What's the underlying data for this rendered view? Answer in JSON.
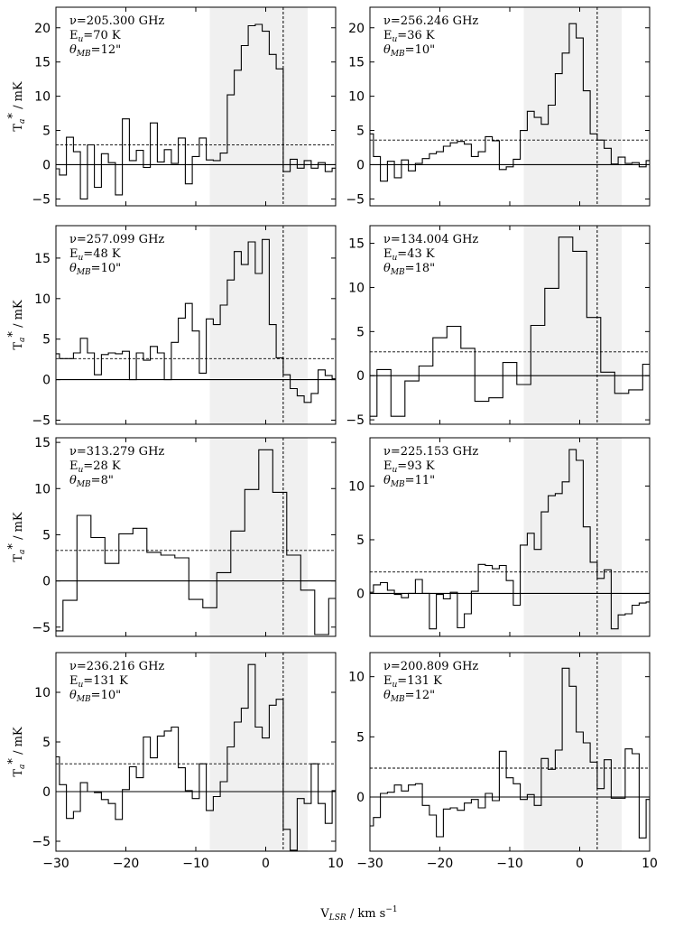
{
  "figure": {
    "xlabel": "V",
    "xlabel_sub": "LSR",
    "xlabel_units": "/ km s",
    "xlabel_exp": "−1",
    "ylabel": "T",
    "ylabel_sub": "a",
    "ylabel_sup": "*",
    "ylabel_units": "/ mK"
  },
  "colors": {
    "line": "#000000",
    "shade": "#f0f0f0"
  },
  "chart_data": [
    {
      "type": "line",
      "step": true,
      "freq": "ν=205.300 GHz",
      "eu": "E",
      "eu_sub": "u",
      "eu_val": "=70 K",
      "beam": "θ",
      "beam_sub": "MB",
      "beam_val": "=12\"",
      "ylim": [
        -6,
        23
      ],
      "yticks": [
        -5,
        0,
        5,
        10,
        15,
        20
      ],
      "xlim": [
        -30,
        10
      ],
      "xticks": [
        -30,
        -20,
        -10,
        0,
        10
      ],
      "shade": [
        -8,
        6
      ],
      "vline": 2.5,
      "hline": 2.9,
      "x": [
        -30,
        -29,
        -28,
        -27,
        -26,
        -25,
        -24,
        -23,
        -22,
        -21,
        -20,
        -19,
        -18,
        -17,
        -16,
        -15,
        -14,
        -13,
        -12,
        -11,
        -10,
        -9,
        -8,
        -7,
        -6,
        -5,
        -4,
        -3,
        -2,
        -1,
        0,
        1,
        2,
        3,
        4,
        5,
        6,
        7,
        8,
        9,
        10
      ],
      "values": [
        -0.6,
        -1.5,
        4.0,
        1.9,
        -5.0,
        2.9,
        -3.3,
        1.6,
        0.3,
        -4.4,
        6.7,
        0.6,
        2.1,
        -0.4,
        6.1,
        0.4,
        2.2,
        0.2,
        3.9,
        -2.8,
        1.2,
        3.9,
        0.7,
        0.6,
        1.7,
        10.2,
        13.8,
        17.4,
        20.3,
        20.5,
        19.5,
        16.1,
        14.0,
        -1.0,
        0.8,
        -0.5,
        0.6,
        -0.5,
        0.3,
        -1.0,
        -0.5
      ]
    },
    {
      "type": "line",
      "step": true,
      "freq": "ν=256.246 GHz",
      "eu": "E",
      "eu_sub": "u",
      "eu_val": "=36 K",
      "beam": "θ",
      "beam_sub": "MB",
      "beam_val": "=10\"",
      "ylim": [
        -6,
        23
      ],
      "yticks": [
        -5,
        0,
        5,
        10,
        15,
        20
      ],
      "xlim": [
        -30,
        10
      ],
      "xticks": [
        -30,
        -20,
        -10,
        0,
        10
      ],
      "shade": [
        -8,
        6
      ],
      "vline": 2.5,
      "hline": 3.6,
      "x": [
        -30,
        -29,
        -28,
        -27,
        -26,
        -25,
        -24,
        -23,
        -22,
        -21,
        -20,
        -19,
        -18,
        -17,
        -16,
        -15,
        -14,
        -13,
        -12,
        -11,
        -10,
        -9,
        -8,
        -7,
        -6,
        -5,
        -4,
        -3,
        -2,
        -1,
        0,
        1,
        2,
        3,
        4,
        5,
        6,
        7,
        8,
        9,
        10
      ],
      "values": [
        4.5,
        1.2,
        -2.4,
        0.5,
        -1.9,
        0.7,
        -0.9,
        0.2,
        0.9,
        1.6,
        1.9,
        2.7,
        3.2,
        3.4,
        3.0,
        1.2,
        1.9,
        4.1,
        3.5,
        -0.7,
        -0.3,
        0.8,
        5.0,
        7.8,
        6.9,
        5.9,
        8.7,
        13.3,
        16.3,
        20.6,
        18.5,
        10.8,
        4.5,
        3.6,
        2.4,
        0.1,
        1.1,
        0.2,
        0.3,
        -0.3,
        0.6
      ]
    },
    {
      "type": "line",
      "step": true,
      "freq": "ν=257.099 GHz",
      "eu": "E",
      "eu_sub": "u",
      "eu_val": "=48 K",
      "beam": "θ",
      "beam_sub": "MB",
      "beam_val": "=10\"",
      "ylim": [
        -5.5,
        19
      ],
      "yticks": [
        -5,
        0,
        5,
        10,
        15
      ],
      "xlim": [
        -30,
        10
      ],
      "xticks": [
        -30,
        -20,
        -10,
        0,
        10
      ],
      "shade": [
        -8,
        6
      ],
      "vline": 2.5,
      "hline": 2.6,
      "x": [
        -30,
        -29,
        -28,
        -27,
        -26,
        -25,
        -24,
        -23,
        -22,
        -21,
        -20,
        -19,
        -18,
        -17,
        -16,
        -15,
        -14,
        -13,
        -12,
        -11,
        -10,
        -9,
        -8,
        -7,
        -6,
        -5,
        -4,
        -3,
        -2,
        -1,
        0,
        1,
        2,
        3,
        4,
        5,
        6,
        7,
        8,
        9,
        10
      ],
      "values": [
        3.2,
        2.6,
        2.6,
        3.3,
        5.1,
        3.3,
        0.6,
        3.1,
        3.3,
        3.2,
        3.5,
        0.0,
        3.3,
        2.4,
        4.1,
        3.3,
        0.0,
        4.6,
        7.6,
        9.4,
        6.0,
        0.8,
        7.5,
        6.8,
        9.2,
        12.3,
        15.8,
        14.2,
        17.0,
        13.1,
        17.3,
        6.8,
        2.7,
        0.6,
        -1.1,
        -2.0,
        -2.8,
        -1.7,
        1.2,
        0.5,
        0.1
      ]
    },
    {
      "type": "line",
      "step": true,
      "freq": "ν=134.004 GHz",
      "eu": "E",
      "eu_sub": "u",
      "eu_val": "=43 K",
      "beam": "θ",
      "beam_sub": "MB",
      "beam_val": "=18\"",
      "ylim": [
        -5.5,
        17
      ],
      "yticks": [
        -5,
        0,
        5,
        10,
        15
      ],
      "xlim": [
        -30,
        10
      ],
      "xticks": [
        -30,
        -20,
        -10,
        0,
        10
      ],
      "shade": [
        -8,
        6
      ],
      "vline": 2.5,
      "hline": 2.7,
      "x": [
        -30,
        -28,
        -26,
        -24,
        -22,
        -20,
        -18,
        -16,
        -14,
        -12,
        -10,
        -8,
        -6,
        -4,
        -2,
        0,
        2,
        4,
        6,
        8,
        10
      ],
      "values": [
        -4.6,
        0.7,
        -4.6,
        -0.6,
        1.1,
        4.3,
        5.6,
        3.1,
        -2.9,
        -2.5,
        1.5,
        -1.0,
        5.7,
        9.9,
        15.7,
        14.1,
        6.6,
        0.4,
        -2.0,
        -1.6,
        1.3
      ]
    },
    {
      "type": "line",
      "step": true,
      "freq": "ν=313.279 GHz",
      "eu": "E",
      "eu_sub": "u",
      "eu_val": "=28 K",
      "beam": "θ",
      "beam_sub": "MB",
      "beam_val": "=8\"",
      "ylim": [
        -6,
        15.5
      ],
      "yticks": [
        -5,
        0,
        5,
        10,
        15
      ],
      "xlim": [
        -30,
        10
      ],
      "xticks": [
        -30,
        -20,
        -10,
        0,
        10
      ],
      "shade": [
        -8,
        6
      ],
      "vline": 2.5,
      "hline": 3.3,
      "x": [
        -30,
        -28,
        -26,
        -24,
        -22,
        -20,
        -18,
        -16,
        -14,
        -12,
        -10,
        -8,
        -6,
        -4,
        -2,
        0,
        2,
        4,
        6,
        8,
        10
      ],
      "values": [
        -5.4,
        -2.1,
        7.1,
        4.7,
        1.9,
        5.1,
        5.7,
        3.1,
        2.8,
        2.5,
        -2.0,
        -2.9,
        0.9,
        5.4,
        9.9,
        14.2,
        9.6,
        2.8,
        -1.0,
        -5.8,
        -1.9
      ]
    },
    {
      "type": "line",
      "step": true,
      "freq": "ν=225.153 GHz",
      "eu": "E",
      "eu_sub": "u",
      "eu_val": "=93 K",
      "beam": "θ",
      "beam_sub": "MB",
      "beam_val": "=11\"",
      "ylim": [
        -4,
        14.5
      ],
      "yticks": [
        0,
        5,
        10
      ],
      "xlim": [
        -30,
        10
      ],
      "xticks": [
        -30,
        -20,
        -10,
        0,
        10
      ],
      "shade": [
        -8,
        6
      ],
      "vline": 2.5,
      "hline": 2.0,
      "x": [
        -30,
        -29,
        -28,
        -27,
        -26,
        -25,
        -24,
        -23,
        -22,
        -21,
        -20,
        -19,
        -18,
        -17,
        -16,
        -15,
        -14,
        -13,
        -12,
        -11,
        -10,
        -9,
        -8,
        -7,
        -6,
        -5,
        -4,
        -3,
        -2,
        -1,
        0,
        1,
        2,
        3,
        4,
        5,
        6,
        7,
        8,
        9,
        10
      ],
      "values": [
        0.1,
        0.8,
        1.0,
        0.3,
        -0.1,
        -0.4,
        0.0,
        1.3,
        0.0,
        -3.3,
        -0.1,
        -0.5,
        0.1,
        -3.2,
        -1.9,
        0.2,
        2.7,
        2.6,
        2.3,
        2.6,
        1.2,
        -1.1,
        4.5,
        5.6,
        4.1,
        7.6,
        9.1,
        9.3,
        10.4,
        13.4,
        12.4,
        6.2,
        2.9,
        1.4,
        2.2,
        -3.3,
        -2.0,
        -1.9,
        -1.1,
        -0.9,
        -0.8
      ]
    },
    {
      "type": "line",
      "step": true,
      "freq": "ν=236.216 GHz",
      "eu": "E",
      "eu_sub": "u",
      "eu_val": "=131 K",
      "beam": "θ",
      "beam_sub": "MB",
      "beam_val": "=10\"",
      "ylim": [
        -6,
        14
      ],
      "yticks": [
        -5,
        0,
        5,
        10
      ],
      "xlim": [
        -30,
        10
      ],
      "xticks": [
        -30,
        -20,
        -10,
        0,
        10
      ],
      "shade": [
        -8,
        6
      ],
      "vline": 2.5,
      "hline": 2.8,
      "x": [
        -30,
        -29,
        -28,
        -27,
        -26,
        -25,
        -24,
        -23,
        -22,
        -21,
        -20,
        -19,
        -18,
        -17,
        -16,
        -15,
        -14,
        -13,
        -12,
        -11,
        -10,
        -9,
        -8,
        -7,
        -6,
        -5,
        -4,
        -3,
        -2,
        -1,
        0,
        1,
        2,
        3,
        4,
        5,
        6,
        7,
        8,
        9,
        10
      ],
      "values": [
        3.5,
        0.7,
        -2.7,
        -2.0,
        0.9,
        0.0,
        -0.1,
        -0.8,
        -1.2,
        -2.8,
        0.2,
        2.5,
        1.4,
        5.5,
        3.4,
        5.6,
        6.1,
        6.5,
        2.4,
        0.1,
        -0.7,
        2.8,
        -1.9,
        -0.5,
        1.0,
        4.5,
        7.0,
        8.4,
        12.8,
        6.5,
        5.4,
        8.7,
        9.3,
        -3.8,
        -5.9,
        -0.7,
        -1.2,
        2.8,
        -1.2,
        -3.2,
        0.1
      ]
    },
    {
      "type": "line",
      "step": true,
      "freq": "ν=200.809 GHz",
      "eu": "E",
      "eu_sub": "u",
      "eu_val": "=131 K",
      "beam": "θ",
      "beam_sub": "MB",
      "beam_val": "=12\"",
      "ylim": [
        -4.5,
        12
      ],
      "yticks": [
        0,
        5,
        10
      ],
      "xlim": [
        -30,
        10
      ],
      "xticks": [
        -30,
        -20,
        -10,
        0,
        10
      ],
      "shade": [
        -8,
        6
      ],
      "vline": 2.5,
      "hline": 2.4,
      "x": [
        -30,
        -29,
        -28,
        -27,
        -26,
        -25,
        -24,
        -23,
        -22,
        -21,
        -20,
        -19,
        -18,
        -17,
        -16,
        -15,
        -14,
        -13,
        -12,
        -11,
        -10,
        -9,
        -8,
        -7,
        -6,
        -5,
        -4,
        -3,
        -2,
        -1,
        0,
        1,
        2,
        3,
        4,
        5,
        6,
        7,
        8,
        9,
        10
      ],
      "values": [
        -2.4,
        -1.7,
        0.3,
        0.4,
        1.0,
        0.5,
        1.0,
        1.1,
        -0.7,
        -1.5,
        -3.3,
        -1.0,
        -0.9,
        -1.1,
        -0.5,
        -0.2,
        -0.9,
        0.3,
        -0.3,
        3.8,
        1.6,
        1.1,
        -0.2,
        0.2,
        -0.7,
        3.2,
        2.3,
        3.9,
        10.7,
        9.2,
        5.4,
        4.5,
        2.9,
        0.7,
        3.1,
        -0.1,
        -0.1,
        4.0,
        3.6,
        -3.4,
        -0.2
      ]
    }
  ]
}
